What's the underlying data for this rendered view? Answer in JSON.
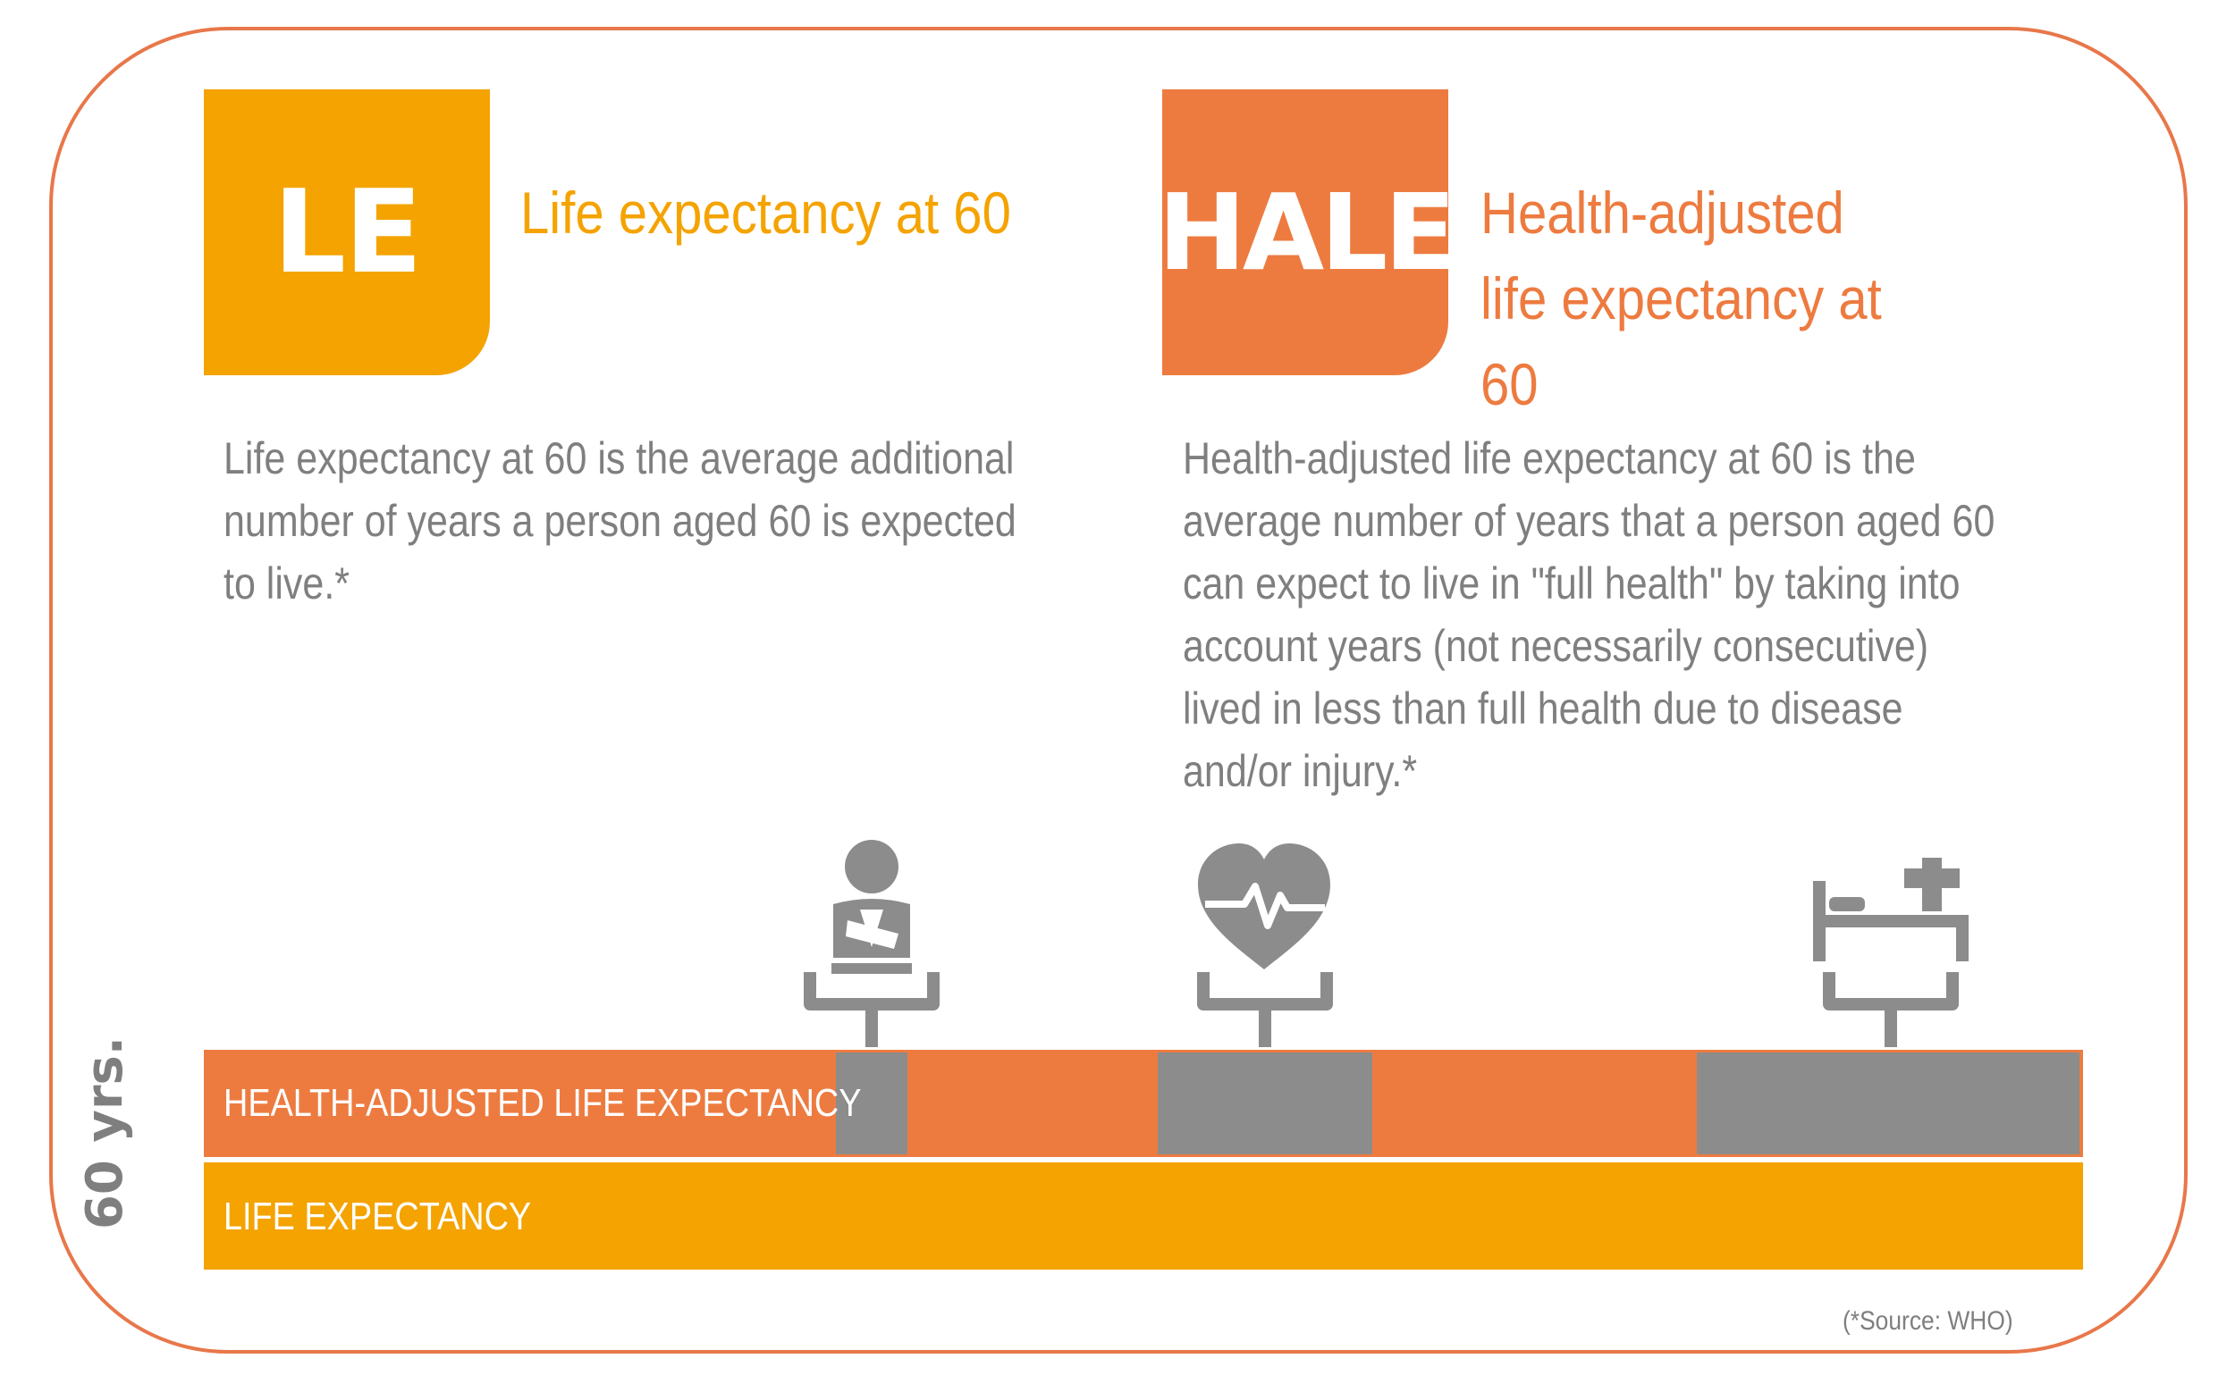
{
  "colors": {
    "le": "#f4a300",
    "hale": "#ed7b40",
    "gap": "#8c8c8c",
    "text": "#7f7f7f",
    "frame": "#e8774a"
  },
  "le": {
    "badge": "LE",
    "heading": "Life expectancy at 60",
    "description": "Life expectancy at 60 is the average additional number of years a person aged 60 is expected to live.*"
  },
  "hale": {
    "badge": "HALE",
    "heading": "Health-adjusted life expectancy at 60",
    "description": "Health-adjusted life expectancy at 60 is the average number of years that a person aged 60 can expect to live in \"full health\" by taking into account years (not necessarily consecutive) lived in less than full health due to disease and/or injury.*"
  },
  "bars": {
    "hale_label": "HEALTH-ADJUSTED LIFE EXPECTANCY",
    "le_label": "LIFE EXPECTANCY",
    "age_label": "60 yrs."
  },
  "icons": [
    "injured-person-icon",
    "heartbeat-icon",
    "hospital-bed-icon"
  ],
  "source": "(*Source: WHO)"
}
